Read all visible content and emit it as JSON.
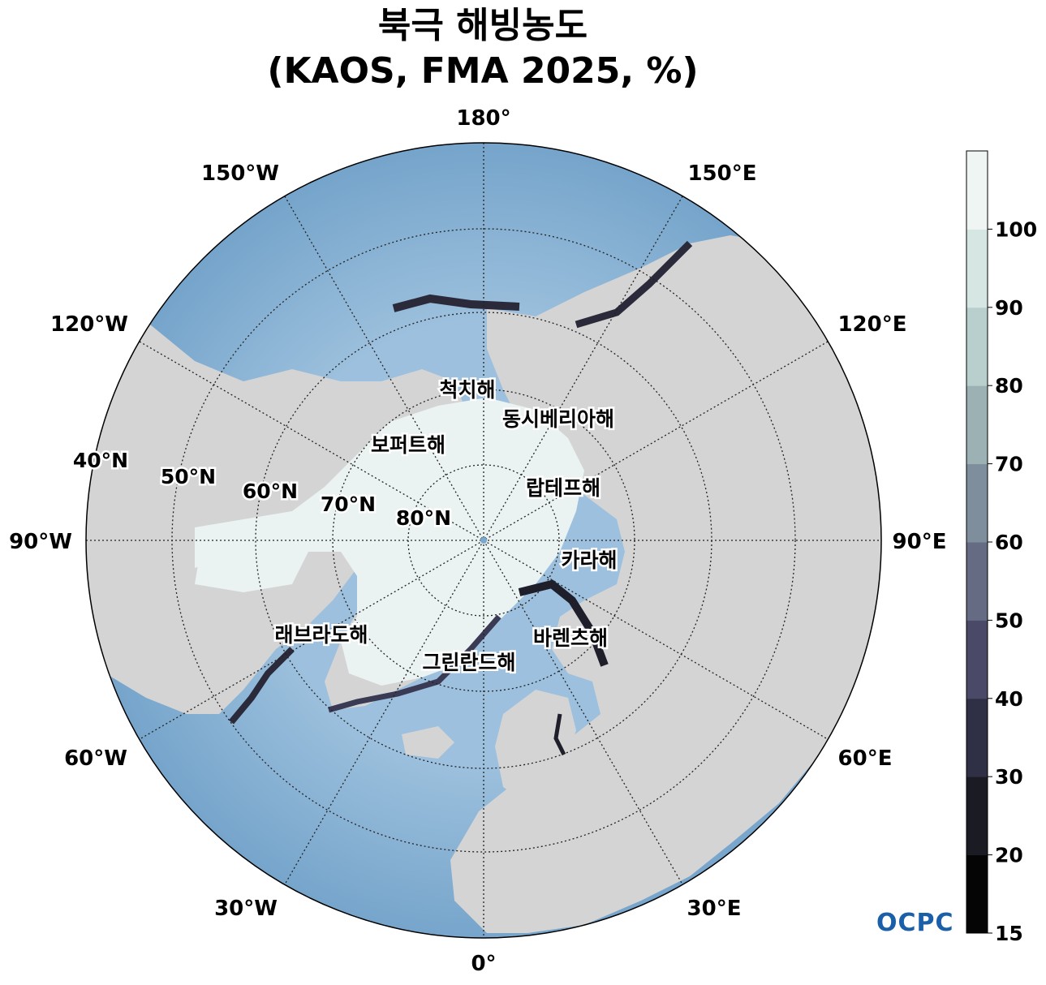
{
  "title": {
    "line1": "북극 해빙농도",
    "line2": "(KAOS, FMA 2025, %)"
  },
  "longitude_labels": {
    "lon_180": "180°",
    "lon_150e": "150°E",
    "lon_120e": "120°E",
    "lon_90e": "90°E",
    "lon_60e": "60°E",
    "lon_30e": "30°E",
    "lon_0": "0°",
    "lon_30w": "30°W",
    "lon_60w": "60°W",
    "lon_90w": "90°W",
    "lon_120w": "120°W",
    "lon_150w": "150°W"
  },
  "latitude_labels": {
    "lat_40": "40°N",
    "lat_50": "50°N",
    "lat_60": "60°N",
    "lat_70": "70°N",
    "lat_80": "80°N"
  },
  "sea_labels": {
    "chukchi": "척치해",
    "east_siberian": "동시베리아해",
    "beaufort": "보퍼트해",
    "laptev": "랍테프해",
    "kara": "카라해",
    "labrador": "래브라도해",
    "barents": "바렌츠해",
    "greenland": "그린란드해"
  },
  "colorbar": {
    "ticks": [
      "15",
      "20",
      "30",
      "40",
      "50",
      "60",
      "70",
      "80",
      "90",
      "100"
    ],
    "levels": [
      15,
      20,
      30,
      40,
      50,
      60,
      70,
      80,
      90,
      100
    ],
    "colors": [
      "#050505",
      "#1b1b24",
      "#2f2f45",
      "#4a4a68",
      "#656b82",
      "#7f8e9c",
      "#9bb1b3",
      "#b8cfcd",
      "#d6e6e3",
      "#eef5f3"
    ]
  },
  "colors": {
    "ocean": "#7aa7cc",
    "land": "#d4d4d4",
    "ice": "#eaf3f2"
  },
  "logo": "OCPC"
}
